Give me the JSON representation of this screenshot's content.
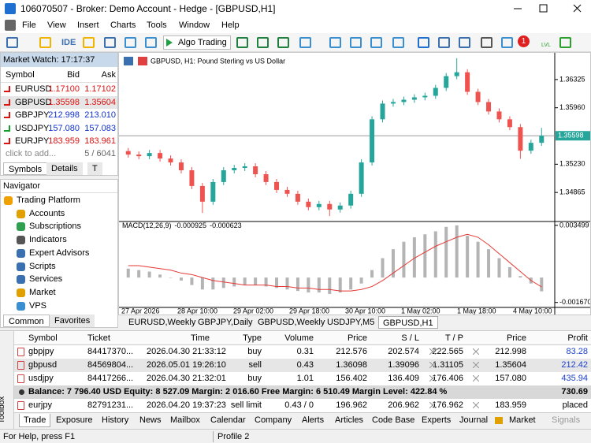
{
  "window": {
    "title": "106070507 - Broker: Demo Account - Hedge - [GBPUSD,H1]"
  },
  "menu": [
    "File",
    "View",
    "Insert",
    "Charts",
    "Tools",
    "Window",
    "Help"
  ],
  "toolbar": {
    "ide": "IDE",
    "algo": "Algo Trading",
    "badge": "1",
    "lvl": "LVL"
  },
  "market_watch": {
    "title": "Market Watch: 17:17:37",
    "columns": [
      "Symbol",
      "Bid",
      "Ask"
    ],
    "rows": [
      {
        "symbol": "EURUSD",
        "bid": "1.17100",
        "ask": "1.17102",
        "color": "#e01010",
        "arrow": "#e01010"
      },
      {
        "symbol": "GBPUSD",
        "bid": "1.35598",
        "ask": "1.35604",
        "color": "#e01010",
        "arrow": "#e01010"
      },
      {
        "symbol": "GBPJPY",
        "bid": "212.998",
        "ask": "213.010",
        "color": "#1030d0",
        "arrow": "#e01010"
      },
      {
        "symbol": "USDJPY",
        "bid": "157.080",
        "ask": "157.083",
        "color": "#1030d0",
        "arrow": "#10a030"
      },
      {
        "symbol": "EURJPY",
        "bid": "183.959",
        "ask": "183.961",
        "color": "#e01010",
        "arrow": "#e01010"
      }
    ],
    "add": "click to add...",
    "count": "5 / 6041",
    "tabs": [
      "Symbols",
      "Details",
      "T"
    ]
  },
  "navigator": {
    "title": "Navigator",
    "items": [
      "Trading Platform",
      "Accounts",
      "Subscriptions",
      "Indicators",
      "Expert Advisors",
      "Scripts",
      "Services",
      "Market",
      "VPS"
    ],
    "tabs": [
      "Common",
      "Favorites"
    ]
  },
  "chart_data": {
    "type": "candlestick",
    "title": "GBPUSD, H1:  Pound Sterling vs US Dollar",
    "colors": {
      "up": "#26a69a",
      "down": "#ef5350",
      "axis": "#000"
    },
    "open": [
      1.354,
      1.35355,
      1.35334,
      1.35375,
      1.35304,
      1.35253,
      1.35152,
      1.34949,
      1.34746,
      1.35,
      1.35152,
      1.35182,
      1.35203,
      1.35101,
      1.35,
      1.34898,
      1.34848,
      1.34746,
      1.34675,
      1.34716,
      1.34645,
      1.34696,
      1.34848,
      1.35253,
      1.35811,
      1.36014,
      1.36034,
      1.36064,
      1.36095,
      1.36115,
      1.36217,
      1.36369,
      1.36419,
      1.36166,
      1.36034,
      1.35912,
      1.35811,
      1.3571,
      1.35405,
      1.35507
    ],
    "high": [
      1.3544,
      1.35395,
      1.35415,
      1.35415,
      1.35344,
      1.35293,
      1.35192,
      1.34989,
      1.3504,
      1.35192,
      1.35222,
      1.35243,
      1.35243,
      1.35141,
      1.3504,
      1.34938,
      1.34888,
      1.34786,
      1.34756,
      1.34756,
      1.34736,
      1.34888,
      1.35293,
      1.35851,
      1.36054,
      1.36074,
      1.36104,
      1.36135,
      1.36155,
      1.36257,
      1.36409,
      1.366,
      1.36459,
      1.36206,
      1.36074,
      1.35952,
      1.35851,
      1.3575,
      1.35547,
      1.357
    ],
    "low": [
      1.35315,
      1.35294,
      1.35294,
      1.35264,
      1.35213,
      1.35112,
      1.34909,
      1.346,
      1.34706,
      1.3496,
      1.35112,
      1.35142,
      1.35061,
      1.3496,
      1.34858,
      1.34808,
      1.34706,
      1.34635,
      1.34635,
      1.3456,
      1.34605,
      1.34656,
      1.34808,
      1.35213,
      1.35771,
      1.35974,
      1.35994,
      1.36024,
      1.36055,
      1.36075,
      1.36177,
      1.36329,
      1.36126,
      1.35994,
      1.35872,
      1.35771,
      1.3567,
      1.353,
      1.35365,
      1.35467
    ],
    "close": [
      1.35355,
      1.35334,
      1.35375,
      1.35304,
      1.35253,
      1.35152,
      1.34949,
      1.34746,
      1.35,
      1.35152,
      1.35182,
      1.35203,
      1.35101,
      1.35,
      1.34898,
      1.34848,
      1.34746,
      1.34675,
      1.34716,
      1.34645,
      1.34696,
      1.34848,
      1.35253,
      1.35811,
      1.36014,
      1.36034,
      1.36064,
      1.36095,
      1.36115,
      1.36217,
      1.36369,
      1.36419,
      1.36166,
      1.36034,
      1.35912,
      1.35811,
      1.3571,
      1.35405,
      1.35507,
      1.35598
    ],
    "ylim": [
      1.3451,
      1.3665
    ],
    "yticks": [
      1.36325,
      {
        "value": 1.3596,
        "label": "1.35960"
      },
      {
        "value": 1.3523,
        "label": "1.35230"
      },
      1.34865
    ],
    "time_labels": [
      "27 Apr 2026",
      "28 Apr 10:00",
      "29 Apr 02:00",
      "29 Apr 18:00",
      "30 Apr 10:00",
      "1 May 02:00",
      "1 May 18:00",
      "4 May 10:00"
    ],
    "indicator": {
      "name": "MACD(12,26,9)",
      "histogram_color": "#b4b4b4",
      "signal_color": "#e53935",
      "histogram": [
        0.0006,
        0.0005,
        0.0004,
        0.0002,
        0,
        -0.0002,
        -0.0005,
        -0.0008,
        -0.0008,
        -0.0007,
        -0.0006,
        -0.0005,
        -0.0005,
        -0.0006,
        -0.0007,
        -0.0008,
        -0.0009,
        -0.001,
        -0.001,
        -0.0011,
        -0.001,
        -0.0008,
        -0.0004,
        0.0005,
        0.0013,
        0.0019,
        0.0024,
        0.0027,
        0.0029,
        0.0031,
        0.0034,
        0.0035,
        0.0028,
        0.0024,
        0.0019,
        0.0013,
        0.0007,
        0.0001,
        -0.0004,
        -0.000925
      ],
      "signal": [
        0.0008,
        0.0008,
        0.0007,
        0.0006,
        0.0005,
        0.0003,
        0.0002,
        0,
        -0.0002,
        -0.0003,
        -0.0004,
        -0.0005,
        -0.0005,
        -0.0005,
        -0.0006,
        -0.0006,
        -0.0007,
        -0.0007,
        -0.0008,
        -0.0008,
        -0.0009,
        -0.0009,
        -0.0008,
        -0.0006,
        -0.0002,
        0.0003,
        0.0008,
        0.0013,
        0.0017,
        0.0021,
        0.0024,
        0.0027,
        0.0029,
        0.0027,
        0.0022,
        0.0016,
        0.001,
        0.0004,
        -0.0002,
        -0.000623
      ],
      "ylim": [
        -0.00195,
        0.0036
      ],
      "yticks": [
        0.003499,
        {
          "value": -0.00167,
          "label": "-0.001670"
        }
      ]
    }
  },
  "chart_tabs": [
    "EURUSD,Weekly",
    "GBPJPY,Daily",
    "GBPUSD,Weekly",
    "USDJPY,M5",
    "GBPUSD,H1"
  ],
  "trade": {
    "side": "Toolbox",
    "columns": [
      "Symbol",
      "Ticket",
      "Time",
      "Type",
      "Volume",
      "Price",
      "S / L",
      "T / P",
      "Price",
      "Profit"
    ],
    "rows": [
      [
        "gbpjpy",
        "84417370...",
        "2026.04.30 21:33:12",
        "buy",
        "0.31",
        "212.576",
        "202.574",
        "222.565",
        "212.998",
        "83.28"
      ],
      [
        "gbpusd",
        "84569804...",
        "2026.05.01 19:26:10",
        "sell",
        "0.43",
        "1.36098",
        "1.39096",
        "1.31105",
        "1.35604",
        "212.42"
      ],
      [
        "usdjpy",
        "84417266...",
        "2026.04.30 21:32:01",
        "buy",
        "1.01",
        "156.402",
        "136.409",
        "176.406",
        "157.080",
        "435.94"
      ]
    ],
    "balance": "Balance: 7 796.40 USD  Equity: 8 527.09  Margin: 2 016.60  Free Margin: 6 510.49  Margin Level: 422.84 %",
    "balance_profit": "730.69",
    "orders": [
      [
        "eurjpy",
        "82791231...",
        "2026.04.20 19:37:23",
        "sell limit",
        "0.43 / 0",
        "196.962",
        "206.962",
        "176.962",
        "183.959",
        "placed"
      ]
    ],
    "profit_color": "#1a3fd0",
    "tabs": [
      "Trade",
      "Exposure",
      "History",
      "News",
      "Mailbox",
      "Calendar",
      "Company",
      "Alerts",
      "Articles",
      "Code Base",
      "Experts",
      "Journal",
      "Market",
      "Signals"
    ]
  },
  "status": {
    "help": "For Help, press F1",
    "profile": "Profile 2"
  }
}
